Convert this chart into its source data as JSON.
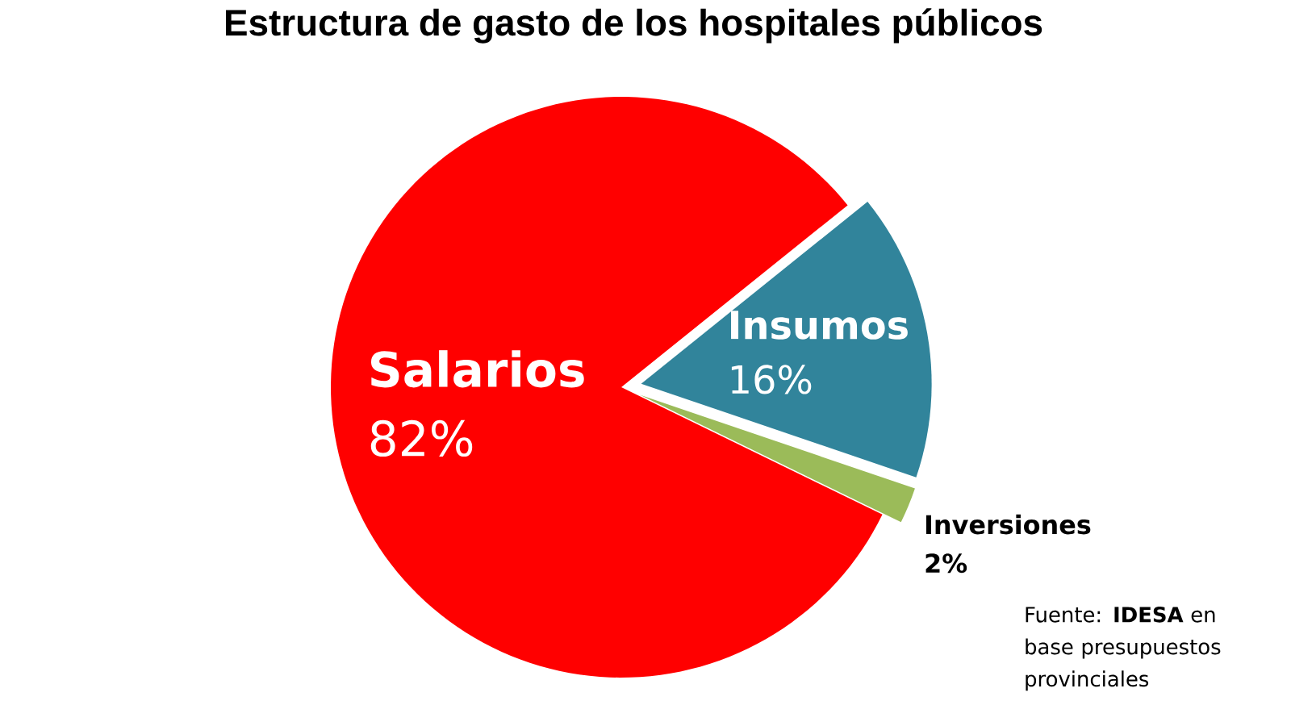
{
  "chart_data": {
    "type": "pie",
    "title": "Estructura de gasto de los hospitales públicos",
    "categories": [
      "Salarios",
      "Insumos",
      "Inversiones"
    ],
    "values": [
      82,
      16,
      2
    ],
    "value_labels": [
      "82%",
      "16%",
      "2%"
    ],
    "colors": [
      "#ff0000",
      "#31849b",
      "#9bbb59"
    ],
    "annotations": [
      "Fuente: **IDESA** en base presupuestos provinciales"
    ]
  }
}
